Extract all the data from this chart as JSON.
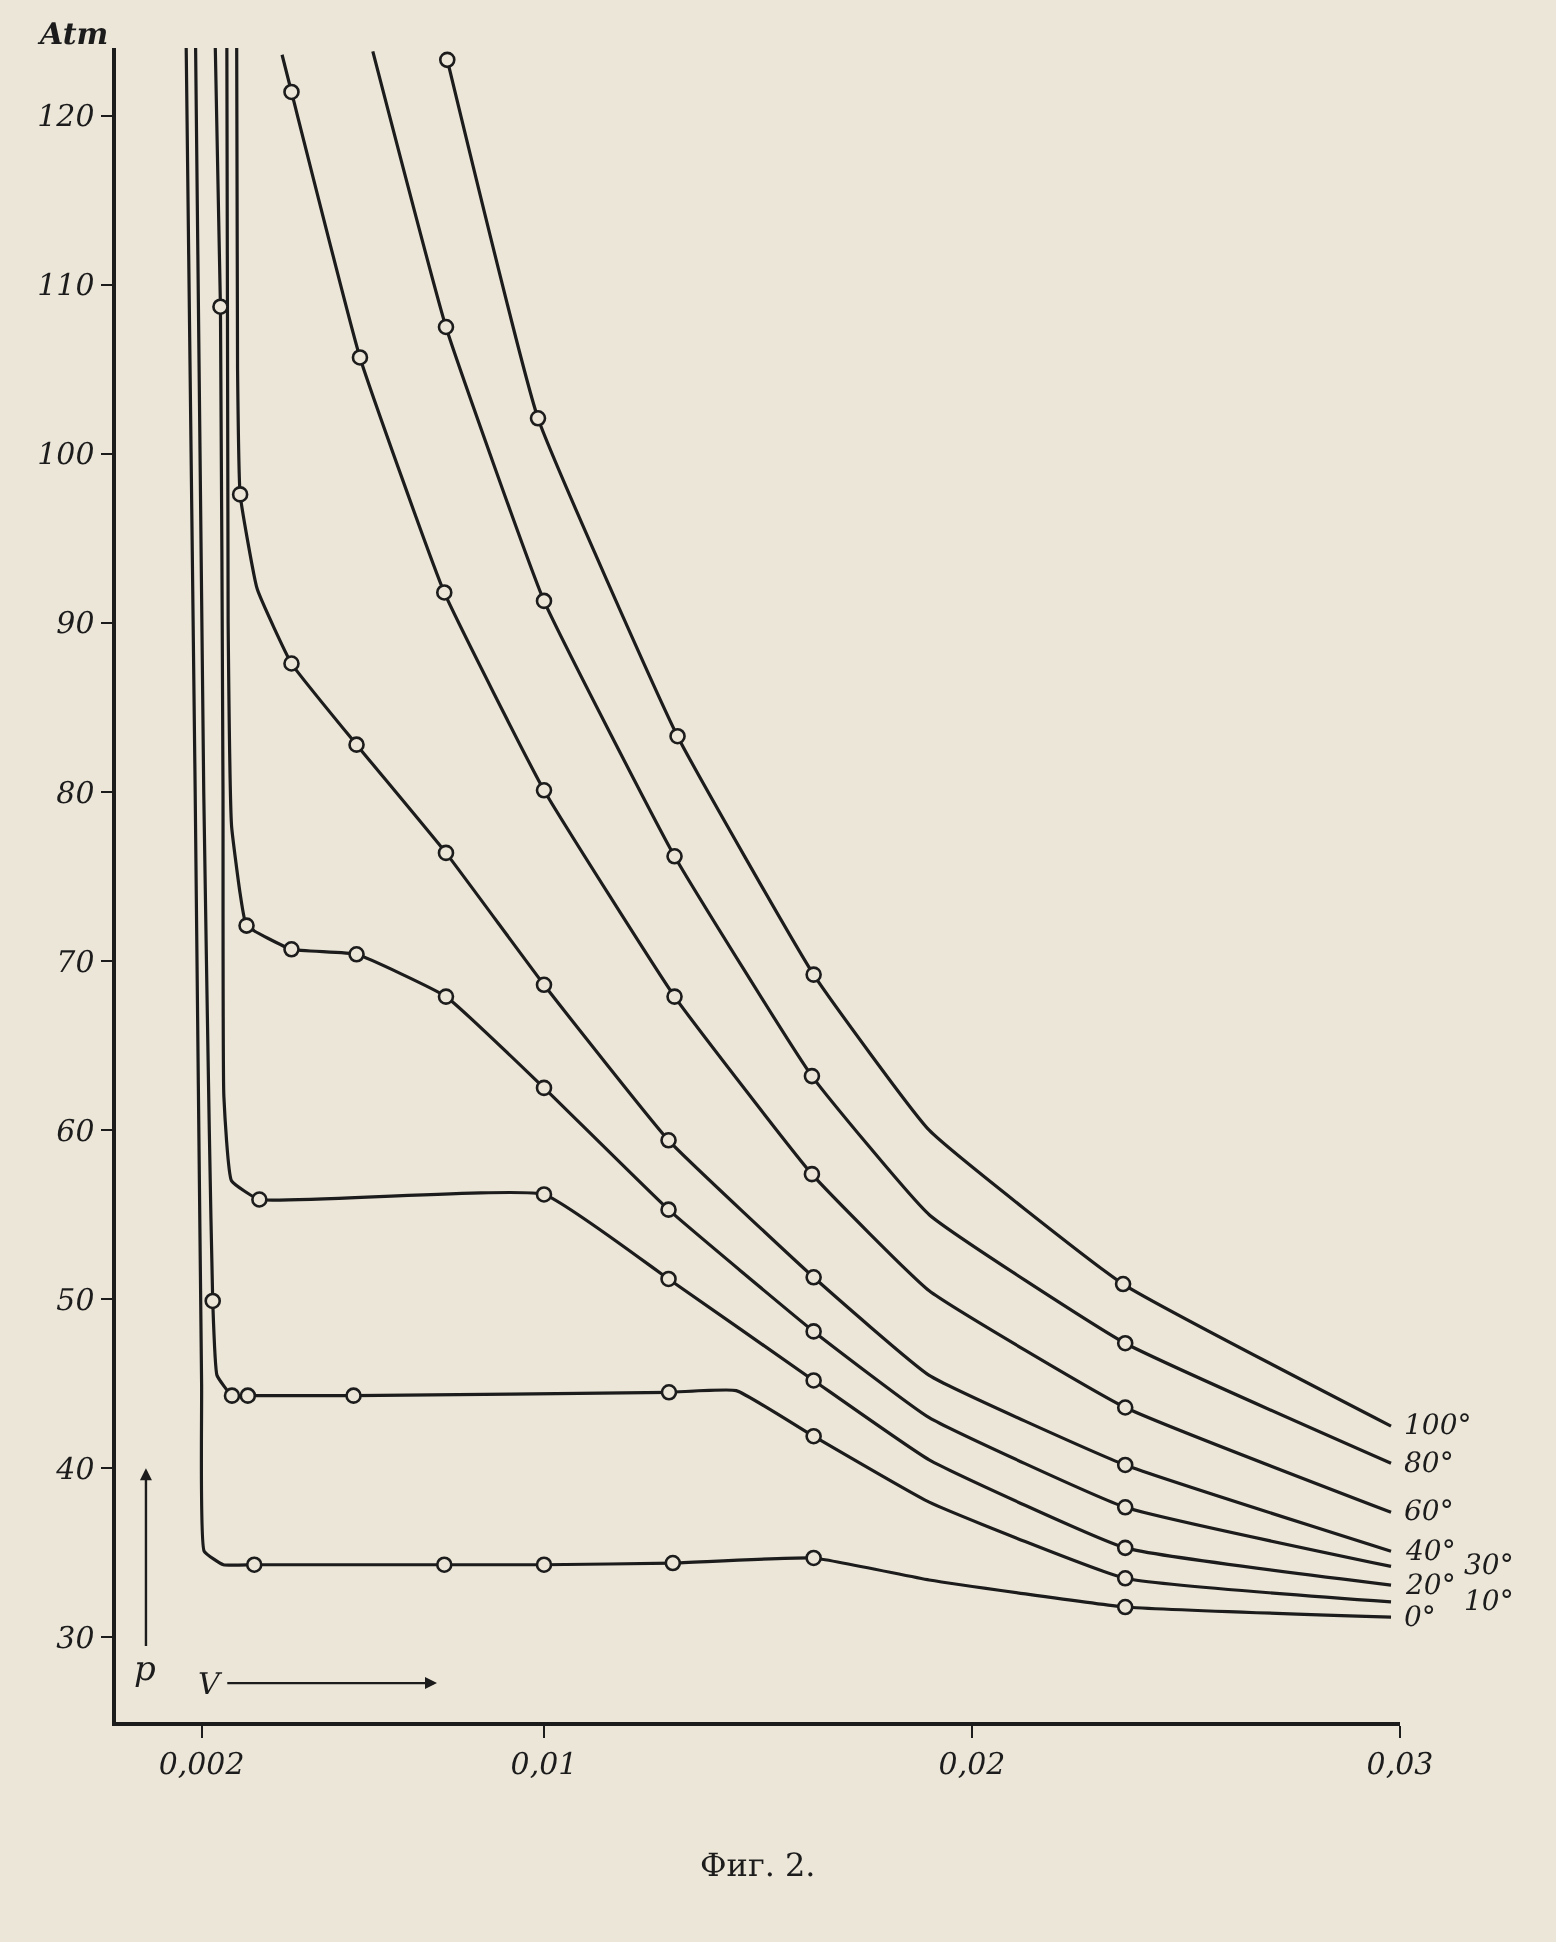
{
  "chart_data": {
    "type": "line",
    "xlabel": "V",
    "ylabel": "p",
    "annotations": [
      "Atm",
      "Фиг. 2."
    ],
    "xlim": [
      0,
      0.03
    ],
    "ylim": [
      25,
      124
    ],
    "xticks": [
      {
        "value": 0.002,
        "label": "0,002"
      },
      {
        "value": 0.01,
        "label": "0,01"
      },
      {
        "value": 0.02,
        "label": "0,02"
      },
      {
        "value": 0.03,
        "label": "0,03"
      }
    ],
    "yticks": [
      30,
      40,
      50,
      60,
      70,
      80,
      90,
      100,
      110,
      120
    ],
    "grid": false,
    "legend": false,
    "series": [
      {
        "type": "line",
        "name": "0°",
        "color": "#1c1c1c",
        "marker": "none",
        "x": [
          0.00164,
          0.00185,
          0.002,
          0.00206,
          0.00251,
          0.00323,
          0.00767,
          0.01,
          0.01301,
          0.0163,
          0.019,
          0.02358,
          0.02979
        ],
        "values": [
          124,
          80,
          45,
          35.1,
          34.3,
          34.3,
          34.3,
          34.3,
          34.4,
          34.7,
          33.4,
          31.8,
          31.2
        ]
      },
      {
        "type": "line",
        "name": "10°",
        "color": "#1c1c1c",
        "marker": "none",
        "x": [
          0.00186,
          0.00205,
          0.00218,
          0.00226,
          0.00236,
          0.00271,
          0.00308,
          0.00555,
          0.01292,
          0.01449,
          0.0163,
          0.019,
          0.02358,
          0.02979
        ],
        "values": [
          124,
          80,
          60,
          49.9,
          45.5,
          44.3,
          44.3,
          44.3,
          44.5,
          44.6,
          41.9,
          38.0,
          33.5,
          32.1
        ]
      },
      {
        "type": "line",
        "name": "20°",
        "color": "#1c1c1c",
        "marker": "none",
        "x": [
          0.00232,
          0.00244,
          0.0025,
          0.00252,
          0.0027,
          0.00335,
          0.01,
          0.01291,
          0.0163,
          0.019,
          0.02358,
          0.02979
        ],
        "values": [
          124,
          108.7,
          80,
          62,
          57,
          55.9,
          56.2,
          51.2,
          45.2,
          40.5,
          35.3,
          33.1
        ]
      },
      {
        "type": "line",
        "name": "30°",
        "color": "#1c1c1c",
        "marker": "none",
        "x": [
          0.00259,
          0.00262,
          0.0027,
          0.0029,
          0.00305,
          0.0041,
          0.00562,
          0.00771,
          0.01,
          0.01291,
          0.0163,
          0.019,
          0.02358,
          0.02979
        ],
        "values": [
          124,
          90,
          78,
          74,
          72.1,
          70.7,
          70.4,
          67.9,
          62.5,
          55.3,
          48.1,
          43.0,
          37.7,
          34.2
        ]
      },
      {
        "type": "line",
        "name": "40°",
        "color": "#1c1c1c",
        "marker": "none",
        "x": [
          0.00282,
          0.00284,
          0.0029,
          0.0033,
          0.0041,
          0.00562,
          0.00771,
          0.01,
          0.01291,
          0.0163,
          0.019,
          0.02358,
          0.02979
        ],
        "values": [
          124,
          105,
          97.6,
          92,
          87.6,
          82.8,
          76.4,
          68.6,
          59.4,
          51.3,
          45.5,
          40.2,
          35.1
        ]
      },
      {
        "type": "line",
        "name": "60°",
        "color": "#1c1c1c",
        "marker": "none",
        "x": [
          0.00388,
          0.0041,
          0.0057,
          0.00767,
          0.01,
          0.01305,
          0.01626,
          0.019,
          0.02358,
          0.02979
        ],
        "values": [
          123.6,
          121.4,
          105.7,
          91.8,
          80.1,
          67.9,
          57.4,
          50.5,
          43.6,
          37.4
        ]
      },
      {
        "type": "line",
        "name": "80°",
        "color": "#1c1c1c",
        "marker": "none",
        "x": [
          0.006,
          0.00771,
          0.01,
          0.01305,
          0.01626,
          0.019,
          0.02358,
          0.02979
        ],
        "values": [
          123.8,
          107.5,
          91.3,
          76.2,
          63.2,
          55.0,
          47.4,
          40.3
        ]
      },
      {
        "type": "line",
        "name": "100°",
        "color": "#1c1c1c",
        "marker": "none",
        "x": [
          0.00774,
          0.00986,
          0.01312,
          0.0163,
          0.019,
          0.02353,
          0.02979
        ],
        "values": [
          123.3,
          102.1,
          83.3,
          69.2,
          60.0,
          50.9,
          42.5
        ]
      },
      {
        "type": "scatter",
        "color": "#1c1c1c",
        "marker": "circle",
        "x": [
          0.00323,
          0.00767,
          0.01,
          0.01301,
          0.0163,
          0.02358
        ],
        "values": [
          34.3,
          34.3,
          34.3,
          34.4,
          34.7,
          31.8
        ]
      },
      {
        "type": "scatter",
        "color": "#1c1c1c",
        "marker": "circle",
        "x": [
          0.00226,
          0.00271,
          0.00308,
          0.00555,
          0.01292,
          0.0163,
          0.02358
        ],
        "values": [
          49.9,
          44.3,
          44.3,
          44.3,
          44.5,
          41.9,
          33.5
        ]
      },
      {
        "type": "scatter",
        "color": "#1c1c1c",
        "marker": "circle",
        "x": [
          0.00244,
          0.00335,
          0.01,
          0.01291,
          0.0163,
          0.02358
        ],
        "values": [
          108.7,
          55.9,
          56.2,
          51.2,
          45.2,
          35.3
        ]
      },
      {
        "type": "scatter",
        "color": "#1c1c1c",
        "marker": "circle",
        "x": [
          0.00305,
          0.0041,
          0.00562,
          0.00771,
          0.01,
          0.01291,
          0.0163,
          0.02358
        ],
        "values": [
          72.1,
          70.7,
          70.4,
          67.9,
          62.5,
          55.3,
          48.1,
          37.7
        ]
      },
      {
        "type": "scatter",
        "color": "#1c1c1c",
        "marker": "circle",
        "x": [
          0.0029,
          0.0041,
          0.00562,
          0.00771,
          0.01,
          0.01291,
          0.0163,
          0.02358
        ],
        "values": [
          97.6,
          87.6,
          82.8,
          76.4,
          68.6,
          59.4,
          51.3,
          40.2
        ]
      },
      {
        "type": "scatter",
        "color": "#1c1c1c",
        "marker": "circle",
        "x": [
          0.0041,
          0.0057,
          0.00767,
          0.01,
          0.01305,
          0.01626,
          0.02358
        ],
        "values": [
          121.4,
          105.7,
          91.8,
          80.1,
          67.9,
          57.4,
          43.6
        ]
      },
      {
        "type": "scatter",
        "color": "#1c1c1c",
        "marker": "circle",
        "x": [
          0.00771,
          0.01,
          0.01305,
          0.01626,
          0.02358
        ],
        "values": [
          107.5,
          91.3,
          76.2,
          63.2,
          47.4
        ]
      },
      {
        "type": "scatter",
        "color": "#1c1c1c",
        "marker": "circle",
        "x": [
          0.00774,
          0.00986,
          0.01312,
          0.0163,
          0.02353
        ],
        "values": [
          123.3,
          102.1,
          83.3,
          69.2,
          50.9
        ]
      }
    ]
  }
}
